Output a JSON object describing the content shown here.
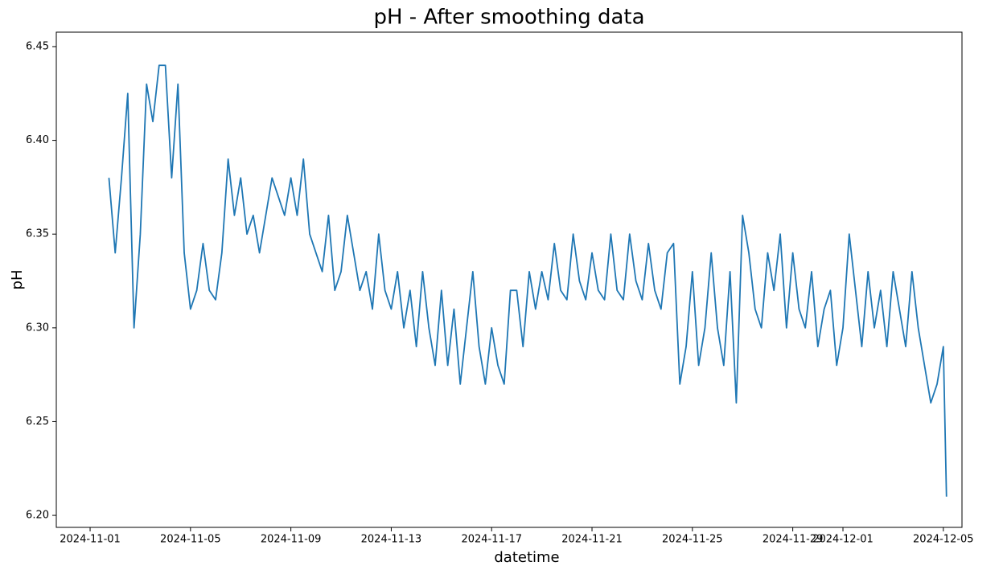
{
  "chart_data": {
    "type": "line",
    "title": "pH - After smoothing data",
    "x_label": "datetime",
    "y_label": "pH",
    "color": "#1f77b4",
    "x": [
      "2024-11-01 18:00",
      "2024-11-02 00:00",
      "2024-11-02 06:00",
      "2024-11-02 12:00",
      "2024-11-02 18:00",
      "2024-11-03 00:00",
      "2024-11-03 06:00",
      "2024-11-03 12:00",
      "2024-11-03 18:00",
      "2024-11-04 00:00",
      "2024-11-04 06:00",
      "2024-11-04 12:00",
      "2024-11-04 18:00",
      "2024-11-05 00:00",
      "2024-11-05 06:00",
      "2024-11-05 12:00",
      "2024-11-05 18:00",
      "2024-11-06 00:00",
      "2024-11-06 06:00",
      "2024-11-06 12:00",
      "2024-11-06 18:00",
      "2024-11-07 00:00",
      "2024-11-07 06:00",
      "2024-11-07 12:00",
      "2024-11-07 18:00",
      "2024-11-08 00:00",
      "2024-11-08 06:00",
      "2024-11-08 12:00",
      "2024-11-08 18:00",
      "2024-11-09 00:00",
      "2024-11-09 06:00",
      "2024-11-09 12:00",
      "2024-11-09 18:00",
      "2024-11-10 00:00",
      "2024-11-10 06:00",
      "2024-11-10 12:00",
      "2024-11-10 18:00",
      "2024-11-11 00:00",
      "2024-11-11 06:00",
      "2024-11-11 12:00",
      "2024-11-11 18:00",
      "2024-11-12 00:00",
      "2024-11-12 06:00",
      "2024-11-12 12:00",
      "2024-11-12 18:00",
      "2024-11-13 00:00",
      "2024-11-13 06:00",
      "2024-11-13 12:00",
      "2024-11-13 18:00",
      "2024-11-14 00:00",
      "2024-11-14 06:00",
      "2024-11-14 12:00",
      "2024-11-14 18:00",
      "2024-11-15 00:00",
      "2024-11-15 06:00",
      "2024-11-15 12:00",
      "2024-11-15 18:00",
      "2024-11-16 00:00",
      "2024-11-16 06:00",
      "2024-11-16 12:00",
      "2024-11-16 18:00",
      "2024-11-17 00:00",
      "2024-11-17 06:00",
      "2024-11-17 12:00",
      "2024-11-17 18:00",
      "2024-11-18 00:00",
      "2024-11-18 06:00",
      "2024-11-18 12:00",
      "2024-11-18 18:00",
      "2024-11-19 00:00",
      "2024-11-19 06:00",
      "2024-11-19 12:00",
      "2024-11-19 18:00",
      "2024-11-20 00:00",
      "2024-11-20 06:00",
      "2024-11-20 12:00",
      "2024-11-20 18:00",
      "2024-11-21 00:00",
      "2024-11-21 06:00",
      "2024-11-21 12:00",
      "2024-11-21 18:00",
      "2024-11-22 00:00",
      "2024-11-22 06:00",
      "2024-11-22 12:00",
      "2024-11-22 18:00",
      "2024-11-23 00:00",
      "2024-11-23 06:00",
      "2024-11-23 12:00",
      "2024-11-23 18:00",
      "2024-11-24 00:00",
      "2024-11-24 06:00",
      "2024-11-24 12:00",
      "2024-11-24 18:00",
      "2024-11-25 00:00",
      "2024-11-25 06:00",
      "2024-11-25 12:00",
      "2024-11-25 18:00",
      "2024-11-26 00:00",
      "2024-11-26 06:00",
      "2024-11-26 12:00",
      "2024-11-26 18:00",
      "2024-11-27 00:00",
      "2024-11-27 06:00",
      "2024-11-27 12:00",
      "2024-11-27 18:00",
      "2024-11-28 00:00",
      "2024-11-28 06:00",
      "2024-11-28 12:00",
      "2024-11-28 18:00",
      "2024-11-29 00:00",
      "2024-11-29 06:00",
      "2024-11-29 12:00",
      "2024-11-29 18:00",
      "2024-11-30 00:00",
      "2024-11-30 06:00",
      "2024-11-30 12:00",
      "2024-11-30 18:00",
      "2024-12-01 00:00",
      "2024-12-01 06:00",
      "2024-12-01 12:00",
      "2024-12-01 18:00",
      "2024-12-02 00:00",
      "2024-12-02 06:00",
      "2024-12-02 12:00",
      "2024-12-02 18:00",
      "2024-12-03 00:00",
      "2024-12-03 06:00",
      "2024-12-03 12:00",
      "2024-12-03 18:00",
      "2024-12-04 00:00",
      "2024-12-04 06:00",
      "2024-12-04 12:00",
      "2024-12-04 18:00",
      "2024-12-05 00:00",
      "2024-12-05 03:00"
    ],
    "values": [
      6.38,
      6.34,
      6.38,
      6.425,
      6.3,
      6.35,
      6.43,
      6.41,
      6.44,
      6.44,
      6.38,
      6.43,
      6.34,
      6.31,
      6.32,
      6.345,
      6.32,
      6.315,
      6.34,
      6.39,
      6.36,
      6.38,
      6.35,
      6.36,
      6.34,
      6.36,
      6.38,
      6.37,
      6.36,
      6.38,
      6.36,
      6.39,
      6.35,
      6.34,
      6.33,
      6.36,
      6.32,
      6.33,
      6.36,
      6.34,
      6.32,
      6.33,
      6.31,
      6.35,
      6.32,
      6.31,
      6.33,
      6.3,
      6.32,
      6.29,
      6.33,
      6.3,
      6.28,
      6.32,
      6.28,
      6.31,
      6.27,
      6.3,
      6.33,
      6.29,
      6.27,
      6.3,
      6.28,
      6.27,
      6.32,
      6.32,
      6.29,
      6.33,
      6.31,
      6.33,
      6.315,
      6.345,
      6.32,
      6.315,
      6.35,
      6.325,
      6.315,
      6.34,
      6.32,
      6.315,
      6.35,
      6.32,
      6.315,
      6.35,
      6.325,
      6.315,
      6.345,
      6.32,
      6.31,
      6.34,
      6.345,
      6.27,
      6.29,
      6.33,
      6.28,
      6.3,
      6.34,
      6.3,
      6.28,
      6.33,
      6.26,
      6.36,
      6.34,
      6.31,
      6.3,
      6.34,
      6.32,
      6.35,
      6.3,
      6.34,
      6.31,
      6.3,
      6.33,
      6.29,
      6.31,
      6.32,
      6.28,
      6.3,
      6.35,
      6.32,
      6.29,
      6.33,
      6.3,
      6.32,
      6.29,
      6.33,
      6.31,
      6.29,
      6.33,
      6.3,
      6.28,
      6.26,
      6.27,
      6.29,
      6.21
    ],
    "xlim": [
      "2024-10-30 15:40",
      "2024-12-05 17:50"
    ],
    "xticks": [
      "2024-11-01",
      "2024-11-05",
      "2024-11-09",
      "2024-11-13",
      "2024-11-17",
      "2024-11-21",
      "2024-11-25",
      "2024-11-29",
      "2024-12-01",
      "2024-12-05"
    ],
    "ylim": [
      6.1936,
      6.4577
    ],
    "yticks": [
      {
        "value": 6.2,
        "label": "6.20"
      },
      {
        "value": 6.25,
        "label": "6.25"
      },
      {
        "value": 6.3,
        "label": "6.30"
      },
      {
        "value": 6.35,
        "label": "6.35"
      },
      {
        "value": 6.4,
        "label": "6.40"
      },
      {
        "value": 6.45,
        "label": "6.45"
      }
    ],
    "grid": false
  }
}
